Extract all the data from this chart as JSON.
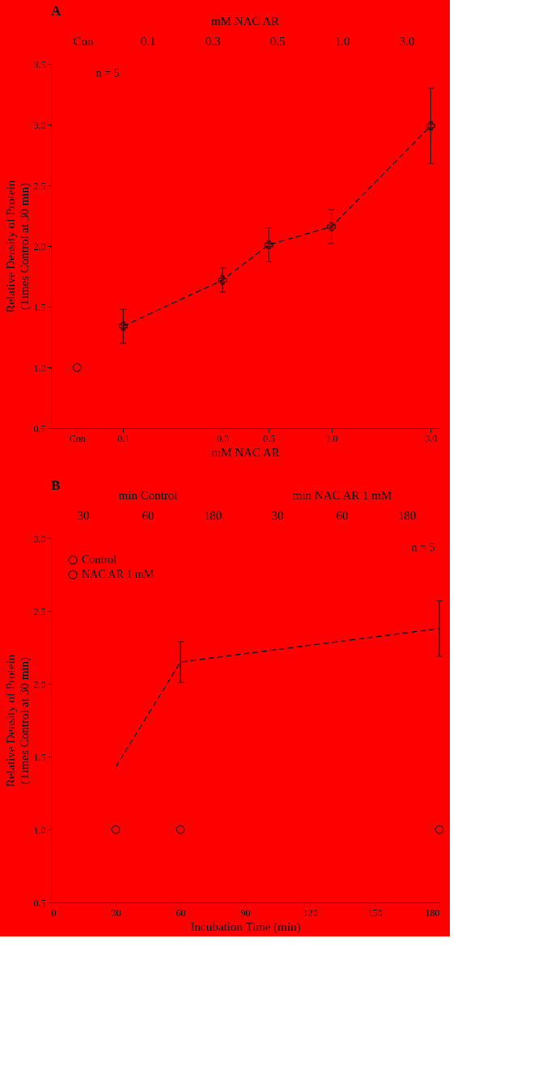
{
  "chart_data": [
    {
      "type": "line",
      "title": "A",
      "xlabel": "mM NAC AR",
      "ylabel": "Relative Density of Protein\n(Times Control at 30 min)",
      "log": "x",
      "line_style": "dashed",
      "grid": false,
      "xlim": [
        0.045,
        3.3
      ],
      "xticks": [
        {
          "value": 0.06,
          "label": "Con"
        },
        0.1,
        0.3,
        0.5,
        {
          "value": 1,
          "label": "1.0"
        },
        {
          "value": 3,
          "label": "3.0"
        }
      ],
      "ylim": [
        0.5,
        3.5
      ],
      "yticks": [
        0.5,
        {
          "value": 1,
          "label": "1.0"
        },
        1.5,
        {
          "value": 2,
          "label": "2.0"
        },
        2.5,
        {
          "value": 3,
          "label": "3.0"
        },
        3.5
      ],
      "annotations": [
        "mM NAC AR",
        "Con",
        "0.1",
        "0.3",
        "0.5",
        "1.0",
        "3.0",
        "n = 5"
      ],
      "series": [
        {
          "type": "scatter",
          "marker": "circle",
          "color": "#000000",
          "x": [
            0.06
          ],
          "values": [
            1.0
          ]
        },
        {
          "type": "line",
          "marker": "cross",
          "color": "#000000",
          "x": [
            0.1,
            0.3,
            0.5,
            1,
            3
          ],
          "values": [
            1.34,
            1.72,
            2.01,
            2.16,
            2.99
          ],
          "errors": [
            0.14,
            0.1,
            0.14,
            0.14,
            0.31
          ]
        }
      ]
    },
    {
      "type": "line",
      "title": "B",
      "xlabel": "Incubation Time (min)",
      "ylabel": "Relative Density of Protein\n(Times Control at 30 min)",
      "line_style": "dashed",
      "grid": false,
      "legend": "top left",
      "xlim": [
        0,
        180
      ],
      "xticks": [
        0,
        30,
        60,
        90,
        120,
        150,
        180
      ],
      "ylim": [
        0.5,
        3.0
      ],
      "yticks": [
        0.5,
        {
          "value": 1,
          "label": "1.0"
        },
        1.5,
        {
          "value": 2,
          "label": "2.0"
        },
        2.5,
        {
          "value": 3,
          "label": "3.0"
        }
      ],
      "annotations": [
        "min Control",
        "min NAC AR 1 mM",
        "30",
        "60",
        "180",
        "30",
        "60",
        "180",
        "n = 5"
      ],
      "series": [
        {
          "name": "Control",
          "type": "scatter",
          "marker": "circle",
          "color": "#000000",
          "x": [
            30,
            60,
            180
          ],
          "values": [
            1.0,
            1.0,
            1.0
          ]
        },
        {
          "name": "NAC AR 1 mM",
          "type": "line",
          "marker": "none",
          "color": "#000000",
          "x": [
            30,
            60,
            180
          ],
          "values": [
            1.43,
            2.15,
            2.38
          ],
          "errors": [
            null,
            0.14,
            0.19
          ]
        }
      ]
    }
  ]
}
